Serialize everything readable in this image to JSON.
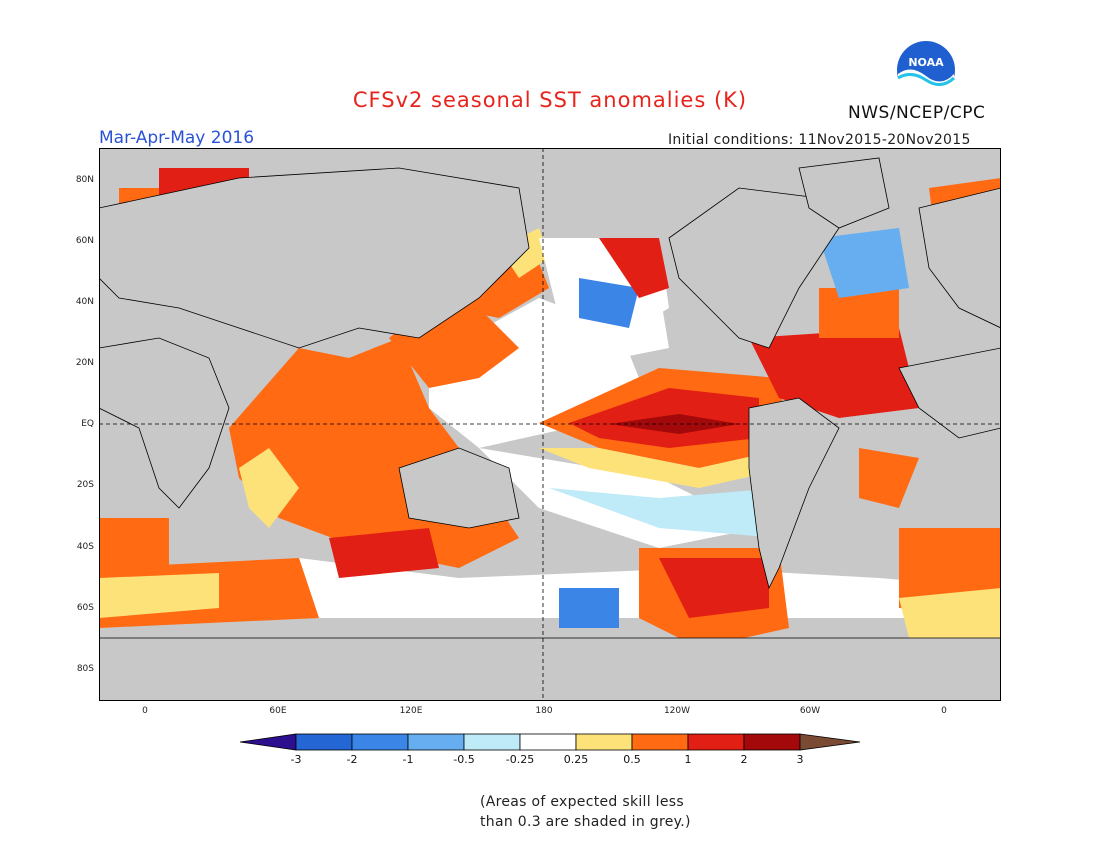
{
  "header": {
    "title": "CFSv2 seasonal SST anomalies (K)",
    "period": "Mar-Apr-May 2016",
    "initial_conditions": "Initial conditions: 11Nov2015-20Nov2015",
    "agency": "NWS/NCEP/CPC",
    "logo_text": "NOAA"
  },
  "map": {
    "lat_labels": [
      "80N",
      "60N",
      "40N",
      "20N",
      "EQ",
      "20S",
      "40S",
      "60S",
      "80S"
    ],
    "lon_labels": [
      "0",
      "60E",
      "120E",
      "180",
      "120W",
      "60W",
      "0"
    ],
    "land_color": "#c8c8c8",
    "grey_mask_meaning": "skill < 0.3"
  },
  "legend": {
    "colors": [
      "#2b0f8f",
      "#2466d4",
      "#3a85e6",
      "#66aef0",
      "#bfeaf7",
      "#ffffff",
      "#fde27a",
      "#ff6a12",
      "#e11f14",
      "#a3080a",
      "#7b4a33"
    ],
    "labels": [
      "-3",
      "-2",
      "-1",
      "-0.5",
      "-0.25",
      "0.25",
      "0.5",
      "1",
      "2",
      "3"
    ]
  },
  "footer": {
    "note_line1": "(Areas of expected skill less",
    "note_line2": "than 0.3 are shaded in grey.)"
  }
}
